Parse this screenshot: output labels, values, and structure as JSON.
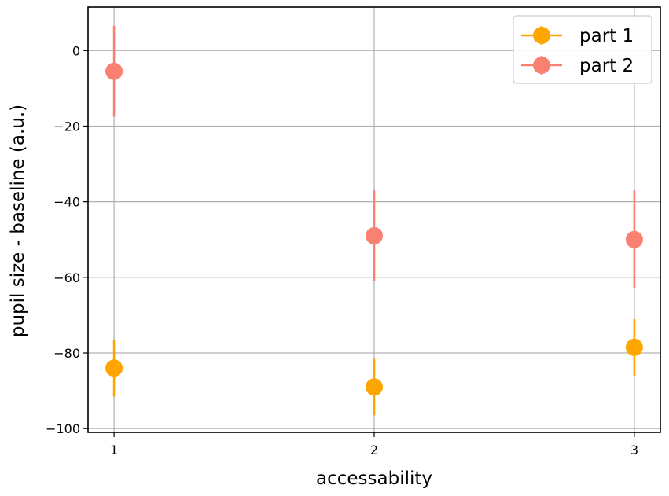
{
  "chart_data": {
    "type": "scatter",
    "title": "",
    "xlabel": "accessability",
    "ylabel": "pupil size - baseline (a.u.)",
    "xlim": [
      0.9,
      3.1
    ],
    "ylim": [
      -101,
      11.5
    ],
    "x_ticks": [
      "1",
      "2",
      "3"
    ],
    "y_ticks": [
      "0",
      "−20",
      "−40",
      "−60",
      "−80",
      "−100"
    ],
    "grid": true,
    "legend_position": "top-right",
    "series": [
      {
        "name": "part 1",
        "color": "#FFA500",
        "points": [
          {
            "x": 1,
            "y": -84,
            "err": 7.5
          },
          {
            "x": 2,
            "y": -89,
            "err": 7.5
          },
          {
            "x": 3,
            "y": -78.5,
            "err": 7.5
          }
        ]
      },
      {
        "name": "part 2",
        "color": "#FA8072",
        "points": [
          {
            "x": 1,
            "y": -5.5,
            "err": 12
          },
          {
            "x": 2,
            "y": -49,
            "err": 12
          },
          {
            "x": 3,
            "y": -50,
            "err": 13
          }
        ]
      }
    ]
  }
}
